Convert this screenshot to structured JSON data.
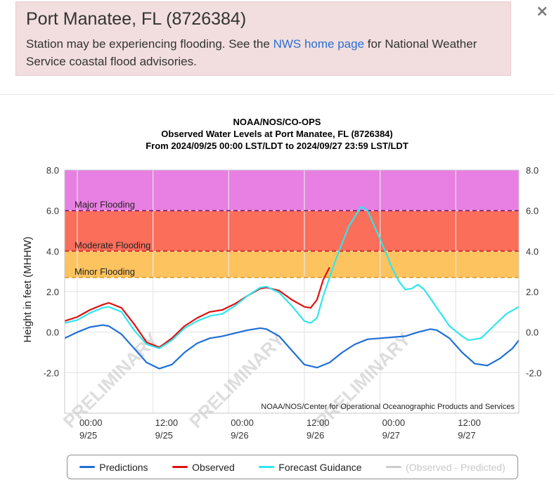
{
  "alert": {
    "title": "Port Manatee, FL (8726384)",
    "message_before": "Station may be experiencing flooding. See the ",
    "link_text": "NWS home page",
    "message_after": " for National Weather Service coastal flood advisories.",
    "close_glyph": "×",
    "bg_color": "#f2dede"
  },
  "chart_data": {
    "type": "line",
    "title_lines": [
      "NOAA/NOS/CO-OPS",
      "Observed Water Levels at Port Manatee, FL (8726384)",
      "From 2024/09/25 00:00 LST/LDT to 2024/09/27 23:59 LST/LDT"
    ],
    "ylabel": "Height in feet (MHHW)",
    "ylim": [
      -4,
      8
    ],
    "xlim_hours": [
      -2,
      70
    ],
    "y_ticks": [
      {
        "value": 8,
        "label": "8.0"
      },
      {
        "value": 6,
        "label": "6.0"
      },
      {
        "value": 4,
        "label": "4.0"
      },
      {
        "value": 2,
        "label": "2.0"
      },
      {
        "value": 0,
        "label": "0.0"
      },
      {
        "value": -2,
        "label": "-2.0"
      }
    ],
    "x_ticks": [
      {
        "hour": 0,
        "time": "00:00",
        "date": "9/25"
      },
      {
        "hour": 12,
        "time": "12:00",
        "date": "9/25"
      },
      {
        "hour": 24,
        "time": "00:00",
        "date": "9/26"
      },
      {
        "hour": 36,
        "time": "12:00",
        "date": "9/26"
      },
      {
        "hour": 48,
        "time": "00:00",
        "date": "9/27"
      },
      {
        "hour": 60,
        "time": "12:00",
        "date": "9/27"
      }
    ],
    "flood_bands": [
      {
        "name": "Major Flooding",
        "from": 6.0,
        "to": 8.0,
        "color": "#e87fe2"
      },
      {
        "name": "Moderate Flooding",
        "from": 4.0,
        "to": 6.0,
        "color": "#fb6e5a"
      },
      {
        "name": "Minor Flooding",
        "from": 2.7,
        "to": 4.0,
        "color": "#fdc35f"
      }
    ],
    "threshold_lines": [
      {
        "value": 6.0,
        "color": "#7a1a7a"
      },
      {
        "value": 4.0,
        "color": "#d11a1a"
      },
      {
        "value": 2.7,
        "color": "#e8961a"
      }
    ],
    "series": [
      {
        "name": "Predictions",
        "color": "#1f6fd6",
        "points": [
          [
            -2,
            -0.3
          ],
          [
            0,
            0.0
          ],
          [
            2,
            0.25
          ],
          [
            4,
            0.35
          ],
          [
            5,
            0.3
          ],
          [
            7,
            -0.1
          ],
          [
            9,
            -0.8
          ],
          [
            11,
            -1.5
          ],
          [
            13,
            -1.8
          ],
          [
            15,
            -1.6
          ],
          [
            17,
            -1.0
          ],
          [
            19,
            -0.55
          ],
          [
            21,
            -0.3
          ],
          [
            23,
            -0.2
          ],
          [
            25,
            -0.05
          ],
          [
            27,
            0.1
          ],
          [
            29,
            0.2
          ],
          [
            30,
            0.15
          ],
          [
            32,
            -0.2
          ],
          [
            34,
            -0.9
          ],
          [
            36,
            -1.6
          ],
          [
            38,
            -1.75
          ],
          [
            40,
            -1.5
          ],
          [
            42,
            -1.0
          ],
          [
            44,
            -0.6
          ],
          [
            46,
            -0.35
          ],
          [
            48,
            -0.3
          ],
          [
            50,
            -0.25
          ],
          [
            52,
            -0.2
          ],
          [
            54,
            0.0
          ],
          [
            56,
            0.15
          ],
          [
            57,
            0.1
          ],
          [
            59,
            -0.3
          ],
          [
            61,
            -1.0
          ],
          [
            63,
            -1.55
          ],
          [
            65,
            -1.65
          ],
          [
            67,
            -1.3
          ],
          [
            69,
            -0.8
          ],
          [
            70,
            -0.4
          ]
        ]
      },
      {
        "name": "Observed",
        "color": "#e01010",
        "points": [
          [
            -2,
            0.55
          ],
          [
            0,
            0.75
          ],
          [
            2,
            1.1
          ],
          [
            4,
            1.35
          ],
          [
            5,
            1.45
          ],
          [
            7,
            1.2
          ],
          [
            9,
            0.4
          ],
          [
            11,
            -0.5
          ],
          [
            13,
            -0.75
          ],
          [
            15,
            -0.3
          ],
          [
            17,
            0.3
          ],
          [
            19,
            0.7
          ],
          [
            21,
            1.0
          ],
          [
            23,
            1.1
          ],
          [
            25,
            1.4
          ],
          [
            27,
            1.8
          ],
          [
            29,
            2.15
          ],
          [
            30,
            2.2
          ],
          [
            32,
            2.05
          ],
          [
            34,
            1.6
          ],
          [
            36,
            1.25
          ],
          [
            37,
            1.2
          ],
          [
            38,
            1.6
          ],
          [
            39,
            2.6
          ],
          [
            40,
            3.2
          ]
        ]
      },
      {
        "name": "Forecast Guidance",
        "color": "#2ee6ee",
        "points": [
          [
            -2,
            0.45
          ],
          [
            0,
            0.6
          ],
          [
            2,
            0.95
          ],
          [
            4,
            1.2
          ],
          [
            5,
            1.25
          ],
          [
            7,
            1.0
          ],
          [
            9,
            0.1
          ],
          [
            11,
            -0.6
          ],
          [
            13,
            -0.8
          ],
          [
            15,
            -0.4
          ],
          [
            17,
            0.2
          ],
          [
            19,
            0.55
          ],
          [
            21,
            0.8
          ],
          [
            23,
            0.9
          ],
          [
            25,
            1.3
          ],
          [
            27,
            1.8
          ],
          [
            29,
            2.2
          ],
          [
            30,
            2.25
          ],
          [
            32,
            1.95
          ],
          [
            34,
            1.3
          ],
          [
            36,
            0.55
          ],
          [
            37,
            0.45
          ],
          [
            38,
            0.7
          ],
          [
            39,
            1.8
          ],
          [
            41,
            3.6
          ],
          [
            43,
            5.2
          ],
          [
            45,
            6.2
          ],
          [
            46,
            6.0
          ],
          [
            48,
            4.6
          ],
          [
            50,
            3.1
          ],
          [
            51,
            2.5
          ],
          [
            52,
            2.1
          ],
          [
            53,
            2.15
          ],
          [
            54,
            2.35
          ],
          [
            55,
            2.1
          ],
          [
            57,
            1.2
          ],
          [
            59,
            0.3
          ],
          [
            61,
            -0.2
          ],
          [
            62,
            -0.4
          ],
          [
            64,
            -0.3
          ],
          [
            66,
            0.3
          ],
          [
            68,
            0.9
          ],
          [
            70,
            1.25
          ]
        ]
      }
    ],
    "watermark": "PRELIMINARY",
    "credit": "NOAA/NOS/Center for Operational Oceanographic Products and Services"
  },
  "legend": [
    {
      "label": "Predictions",
      "color": "#1f6fd6",
      "enabled": true
    },
    {
      "label": "Observed",
      "color": "#e01010",
      "enabled": true
    },
    {
      "label": "Forecast Guidance",
      "color": "#2ee6ee",
      "enabled": true
    },
    {
      "label": "(Observed - Predicted)",
      "color": "#cccccc",
      "enabled": false
    }
  ]
}
